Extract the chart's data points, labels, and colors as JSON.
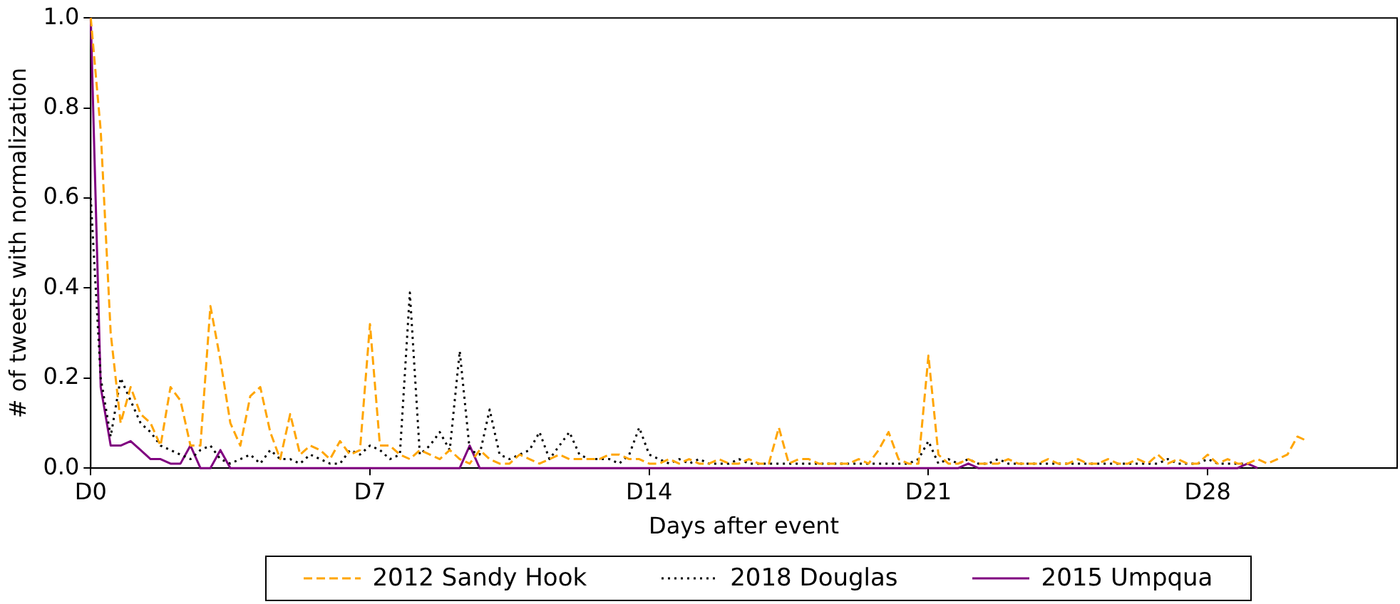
{
  "chart_data": {
    "type": "line",
    "xlabel": "Days after event",
    "ylabel": "# of tweets with normalization",
    "categories": [
      "D0",
      null,
      null,
      null,
      null,
      null,
      null,
      null,
      null,
      null,
      null,
      null,
      null,
      null,
      null,
      null,
      null,
      null,
      null,
      null,
      null,
      null,
      null,
      null,
      null,
      null,
      null,
      null,
      "D7",
      null,
      null,
      null,
      null,
      null,
      null,
      null,
      null,
      null,
      null,
      null,
      null,
      null,
      null,
      null,
      null,
      null,
      null,
      null,
      null,
      null,
      null,
      null,
      null,
      null,
      null,
      null,
      "D14",
      null,
      null,
      null,
      null,
      null,
      null,
      null,
      null,
      null,
      null,
      null,
      null,
      null,
      null,
      null,
      null,
      null,
      null,
      null,
      null,
      null,
      null,
      null,
      null,
      null,
      null,
      null,
      "D21",
      null,
      null,
      null,
      null,
      null,
      null,
      null,
      null,
      null,
      null,
      null,
      null,
      null,
      null,
      null,
      null,
      null,
      null,
      null,
      null,
      null,
      null,
      null,
      null,
      null,
      null,
      null,
      "D28",
      null,
      null,
      null,
      null,
      null,
      null,
      null,
      null,
      null,
      null,
      null,
      null,
      null,
      null,
      null,
      null,
      null,
      null,
      null
    ],
    "ylim": [
      0,
      1
    ],
    "yticks": [
      {
        "value": 0,
        "label": "0.0"
      },
      {
        "value": 0.2,
        "label": "0.2"
      },
      {
        "value": 0.4,
        "label": "0.4"
      },
      {
        "value": 0.6,
        "label": "0.6"
      },
      {
        "value": 0.8,
        "label": "0.8"
      },
      {
        "value": 1,
        "label": "1.0"
      }
    ],
    "grid": false,
    "legend": "bottom",
    "marker": "none",
    "series": [
      {
        "name": "2012 Sandy Hook",
        "color": "#ffa500",
        "line_style": "dashed",
        "values": [
          1.0,
          0.75,
          0.3,
          0.1,
          0.18,
          0.12,
          0.1,
          0.05,
          0.18,
          0.15,
          0.05,
          0.05,
          0.36,
          0.24,
          0.1,
          0.05,
          0.16,
          0.18,
          0.08,
          0.02,
          0.12,
          0.03,
          0.05,
          0.04,
          0.02,
          0.06,
          0.03,
          0.04,
          0.32,
          0.05,
          0.05,
          0.03,
          0.02,
          0.04,
          0.03,
          0.02,
          0.04,
          0.02,
          0.01,
          0.04,
          0.02,
          0.01,
          0.01,
          0.03,
          0.02,
          0.01,
          0.02,
          0.03,
          0.02,
          0.02,
          0.02,
          0.02,
          0.03,
          0.03,
          0.02,
          0.02,
          0.01,
          0.01,
          0.02,
          0.01,
          0.02,
          0.01,
          0.01,
          0.02,
          0.01,
          0.01,
          0.02,
          0.01,
          0.01,
          0.09,
          0.01,
          0.02,
          0.02,
          0.01,
          0.01,
          0.01,
          0.01,
          0.02,
          0.01,
          0.04,
          0.08,
          0.02,
          0.01,
          0.01,
          0.25,
          0.03,
          0.01,
          0.01,
          0.02,
          0.01,
          0.01,
          0.01,
          0.02,
          0.01,
          0.01,
          0.01,
          0.02,
          0.01,
          0.01,
          0.02,
          0.01,
          0.01,
          0.02,
          0.01,
          0.01,
          0.02,
          0.01,
          0.03,
          0.01,
          0.02,
          0.01,
          0.01,
          0.03,
          0.01,
          0.02,
          0.01,
          0.01,
          0.02,
          0.01,
          0.02,
          0.03,
          0.07,
          0.06,
          null,
          null,
          null,
          null,
          null,
          null,
          null,
          null,
          null
        ]
      },
      {
        "name": "2018 Douglas",
        "color": "#000000",
        "line_style": "dotted",
        "values": [
          0.6,
          0.2,
          0.07,
          0.2,
          0.15,
          0.1,
          0.08,
          0.05,
          0.04,
          0.03,
          0.02,
          0.04,
          0.05,
          0.02,
          0.01,
          0.02,
          0.03,
          0.01,
          0.04,
          0.02,
          0.02,
          0.01,
          0.03,
          0.02,
          0.01,
          0.01,
          0.04,
          0.03,
          0.05,
          0.04,
          0.02,
          0.03,
          0.39,
          0.03,
          0.05,
          0.08,
          0.04,
          0.26,
          0.04,
          0.03,
          0.13,
          0.03,
          0.02,
          0.03,
          0.04,
          0.08,
          0.02,
          0.05,
          0.08,
          0.03,
          0.02,
          0.02,
          0.02,
          0.01,
          0.03,
          0.09,
          0.03,
          0.02,
          0.01,
          0.02,
          0.01,
          0.02,
          0.01,
          0.01,
          0.01,
          0.02,
          0.01,
          0.01,
          0.01,
          0.01,
          0.01,
          0.01,
          0.01,
          0.01,
          0.01,
          0.01,
          0.01,
          0.01,
          0.01,
          0.01,
          0.01,
          0.01,
          0.01,
          0.02,
          0.06,
          0.01,
          0.02,
          0.01,
          0.02,
          0.01,
          0.01,
          0.02,
          0.01,
          0.01,
          0.01,
          0.01,
          0.01,
          0.01,
          0.01,
          0.01,
          0.01,
          0.01,
          0.01,
          0.01,
          0.01,
          0.01,
          0.01,
          0.01,
          0.02,
          0.01,
          0.01,
          0.01,
          0.02,
          0.01,
          0.01,
          0.01,
          0.01,
          null,
          null,
          null,
          null,
          null,
          null,
          null,
          null,
          null,
          null,
          null,
          null,
          null,
          null,
          null
        ]
      },
      {
        "name": "2015 Umpqua",
        "color": "#800080",
        "line_style": "solid",
        "values": [
          1.0,
          0.18,
          0.05,
          0.05,
          0.06,
          0.04,
          0.02,
          0.02,
          0.01,
          0.01,
          0.05,
          0,
          0,
          0.04,
          0,
          0,
          0,
          0,
          0,
          0,
          0,
          0,
          0,
          0,
          0,
          0,
          0,
          0,
          0,
          0,
          0,
          0,
          0,
          0,
          0,
          0,
          0,
          0,
          0.05,
          0,
          0,
          0,
          0,
          0,
          0,
          0,
          0,
          0,
          0,
          0,
          0,
          0,
          0,
          0,
          0,
          0,
          0,
          0,
          0,
          0,
          0,
          0,
          0,
          0,
          0,
          0,
          0,
          0,
          0,
          0,
          0,
          0,
          0,
          0,
          0,
          0,
          0,
          0,
          0,
          0,
          0,
          0,
          0,
          0,
          0,
          0,
          0,
          0,
          0.01,
          0,
          0,
          0,
          0,
          0,
          0,
          0,
          0,
          0,
          0,
          0,
          0,
          0,
          0,
          0,
          0,
          0,
          0,
          0,
          0,
          0,
          0,
          0,
          0,
          0,
          0,
          0,
          0.01,
          0,
          null,
          null,
          null,
          null,
          null,
          null,
          null,
          null,
          null,
          null,
          null,
          null,
          null,
          null
        ]
      }
    ]
  }
}
